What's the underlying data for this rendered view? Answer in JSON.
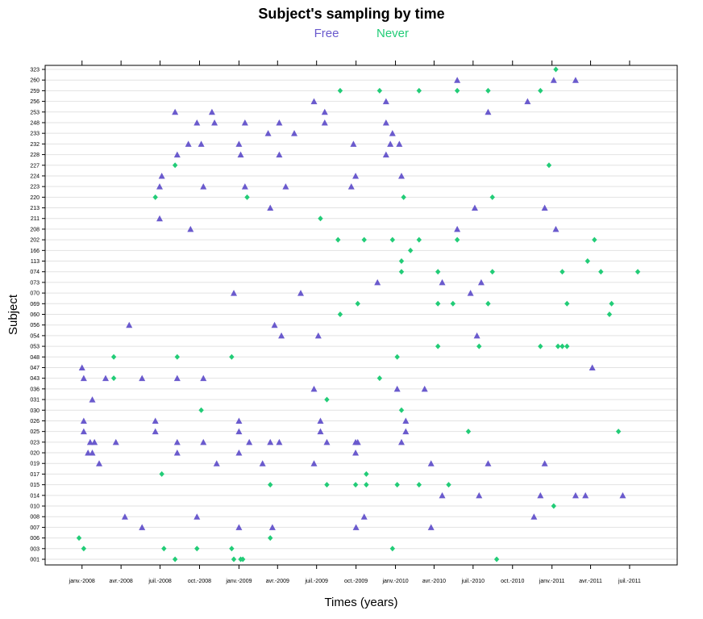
{
  "chart_data": {
    "type": "scatter",
    "title": "Subject's sampling by time",
    "xlabel": "Times (years)",
    "ylabel": "Subject",
    "xlim": [
      "2007-10-07",
      "2011-10-20"
    ],
    "x_ticks": [
      "janv.-2008",
      "avr.-2008",
      "juil.-2008",
      "oct.-2008",
      "janv.-2009",
      "avr.-2009",
      "juil.-2009",
      "oct.-2009",
      "janv.-2010",
      "avr.-2010",
      "juil.-2010",
      "oct.-2010",
      "janv.-2011",
      "avr.-2011",
      "juil.-2011"
    ],
    "x_tick_dates": [
      "2008-01-01",
      "2008-04-01",
      "2008-07-01",
      "2008-10-01",
      "2009-01-01",
      "2009-04-01",
      "2009-07-01",
      "2009-10-01",
      "2010-01-01",
      "2010-04-01",
      "2010-07-01",
      "2010-10-01",
      "2011-01-01",
      "2011-04-01",
      "2011-07-01"
    ],
    "categories": [
      "001",
      "003",
      "006",
      "007",
      "008",
      "010",
      "014",
      "015",
      "017",
      "019",
      "020",
      "023",
      "025",
      "026",
      "030",
      "031",
      "036",
      "043",
      "047",
      "048",
      "053",
      "054",
      "056",
      "060",
      "069",
      "070",
      "073",
      "074",
      "113",
      "166",
      "202",
      "208",
      "211",
      "213",
      "220",
      "223",
      "224",
      "227",
      "228",
      "232",
      "233",
      "248",
      "253",
      "256",
      "259",
      "260",
      "323"
    ],
    "grid": true,
    "legend_position": "top",
    "series": [
      {
        "name": "Free",
        "color": "#6a5acd",
        "marker": "triangle",
        "points": [
          [
            "2009-01-01",
            "007"
          ],
          [
            "2009-03-20",
            "007"
          ],
          [
            "2009-10-01",
            "007"
          ],
          [
            "2010-03-25",
            "007"
          ],
          [
            "2008-05-20",
            "007"
          ],
          [
            "2008-04-10",
            "008"
          ],
          [
            "2008-09-25",
            "008"
          ],
          [
            "2009-10-20",
            "008"
          ],
          [
            "2010-11-20",
            "008"
          ],
          [
            "2010-04-20",
            "014"
          ],
          [
            "2010-07-15",
            "014"
          ],
          [
            "2010-12-05",
            "014"
          ],
          [
            "2011-02-25",
            "014"
          ],
          [
            "2011-03-20",
            "014"
          ],
          [
            "2011-06-15",
            "014"
          ],
          [
            "2008-02-10",
            "019"
          ],
          [
            "2008-11-10",
            "019"
          ],
          [
            "2009-02-25",
            "019"
          ],
          [
            "2009-06-25",
            "019"
          ],
          [
            "2010-03-25",
            "019"
          ],
          [
            "2010-08-05",
            "019"
          ],
          [
            "2010-12-15",
            "019"
          ],
          [
            "2008-01-15",
            "020"
          ],
          [
            "2008-01-25",
            "020"
          ],
          [
            "2008-08-10",
            "020"
          ],
          [
            "2009-01-01",
            "020"
          ],
          [
            "2009-09-30",
            "020"
          ],
          [
            "2008-01-20",
            "023"
          ],
          [
            "2008-01-30",
            "023"
          ],
          [
            "2008-03-20",
            "023"
          ],
          [
            "2008-08-10",
            "023"
          ],
          [
            "2008-10-10",
            "023"
          ],
          [
            "2009-01-25",
            "023"
          ],
          [
            "2009-03-15",
            "023"
          ],
          [
            "2009-04-05",
            "023"
          ],
          [
            "2009-07-25",
            "023"
          ],
          [
            "2009-09-30",
            "023"
          ],
          [
            "2009-10-05",
            "023"
          ],
          [
            "2010-01-15",
            "023"
          ],
          [
            "2008-01-05",
            "025"
          ],
          [
            "2008-06-20",
            "025"
          ],
          [
            "2009-01-01",
            "025"
          ],
          [
            "2009-07-10",
            "025"
          ],
          [
            "2010-01-25",
            "025"
          ],
          [
            "2008-01-05",
            "026"
          ],
          [
            "2008-06-20",
            "026"
          ],
          [
            "2009-01-01",
            "026"
          ],
          [
            "2009-07-10",
            "026"
          ],
          [
            "2010-01-25",
            "026"
          ],
          [
            "2008-01-25",
            "031"
          ],
          [
            "2009-06-25",
            "036"
          ],
          [
            "2010-01-05",
            "036"
          ],
          [
            "2010-03-10",
            "036"
          ],
          [
            "2008-01-05",
            "043"
          ],
          [
            "2008-02-25",
            "043"
          ],
          [
            "2008-05-20",
            "043"
          ],
          [
            "2008-08-10",
            "043"
          ],
          [
            "2008-10-10",
            "043"
          ],
          [
            "2008-01-01",
            "047"
          ],
          [
            "2011-04-05",
            "047"
          ],
          [
            "2009-04-10",
            "054"
          ],
          [
            "2009-07-05",
            "054"
          ],
          [
            "2010-07-10",
            "054"
          ],
          [
            "2008-04-20",
            "056"
          ],
          [
            "2009-03-25",
            "056"
          ],
          [
            "2008-12-20",
            "070"
          ],
          [
            "2009-05-25",
            "070"
          ],
          [
            "2010-06-25",
            "070"
          ],
          [
            "2009-11-20",
            "073"
          ],
          [
            "2010-04-20",
            "073"
          ],
          [
            "2010-07-20",
            "073"
          ],
          [
            "2008-09-10",
            "208"
          ],
          [
            "2010-05-25",
            "208"
          ],
          [
            "2011-01-10",
            "208"
          ],
          [
            "2008-06-30",
            "211"
          ],
          [
            "2009-03-15",
            "213"
          ],
          [
            "2010-07-05",
            "213"
          ],
          [
            "2010-12-15",
            "213"
          ],
          [
            "2008-06-30",
            "223"
          ],
          [
            "2008-10-10",
            "223"
          ],
          [
            "2009-01-15",
            "223"
          ],
          [
            "2009-04-20",
            "223"
          ],
          [
            "2009-09-20",
            "223"
          ],
          [
            "2008-07-05",
            "224"
          ],
          [
            "2009-09-30",
            "224"
          ],
          [
            "2010-01-15",
            "224"
          ],
          [
            "2008-08-10",
            "228"
          ],
          [
            "2009-01-05",
            "228"
          ],
          [
            "2009-04-05",
            "228"
          ],
          [
            "2009-12-10",
            "228"
          ],
          [
            "2008-09-05",
            "232"
          ],
          [
            "2008-10-05",
            "232"
          ],
          [
            "2009-01-01",
            "232"
          ],
          [
            "2009-09-25",
            "232"
          ],
          [
            "2009-12-20",
            "232"
          ],
          [
            "2010-01-10",
            "232"
          ],
          [
            "2009-03-10",
            "233"
          ],
          [
            "2009-05-10",
            "233"
          ],
          [
            "2009-12-25",
            "233"
          ],
          [
            "2008-09-25",
            "248"
          ],
          [
            "2008-11-05",
            "248"
          ],
          [
            "2009-01-15",
            "248"
          ],
          [
            "2009-04-05",
            "248"
          ],
          [
            "2009-07-20",
            "248"
          ],
          [
            "2009-12-10",
            "248"
          ],
          [
            "2008-08-05",
            "253"
          ],
          [
            "2008-10-30",
            "253"
          ],
          [
            "2009-07-20",
            "253"
          ],
          [
            "2010-08-05",
            "253"
          ],
          [
            "2009-06-25",
            "256"
          ],
          [
            "2009-12-10",
            "256"
          ],
          [
            "2010-11-05",
            "256"
          ],
          [
            "2010-05-25",
            "260"
          ],
          [
            "2011-01-05",
            "260"
          ],
          [
            "2011-02-25",
            "260"
          ]
        ]
      },
      {
        "name": "Never",
        "color": "#22cc77",
        "marker": "diamond",
        "points": [
          [
            "2008-08-05",
            "001"
          ],
          [
            "2008-12-20",
            "001"
          ],
          [
            "2009-01-05",
            "001"
          ],
          [
            "2009-01-10",
            "001"
          ],
          [
            "2010-08-25",
            "001"
          ],
          [
            "2008-01-05",
            "003"
          ],
          [
            "2008-07-10",
            "003"
          ],
          [
            "2008-09-25",
            "003"
          ],
          [
            "2008-12-15",
            "003"
          ],
          [
            "2009-12-25",
            "003"
          ],
          [
            "2007-12-25",
            "006"
          ],
          [
            "2009-03-15",
            "006"
          ],
          [
            "2011-01-05",
            "010"
          ],
          [
            "2009-03-15",
            "015"
          ],
          [
            "2009-07-25",
            "015"
          ],
          [
            "2009-09-30",
            "015"
          ],
          [
            "2009-10-25",
            "015"
          ],
          [
            "2010-01-05",
            "015"
          ],
          [
            "2010-02-25",
            "015"
          ],
          [
            "2010-05-05",
            "015"
          ],
          [
            "2008-07-05",
            "017"
          ],
          [
            "2009-10-25",
            "017"
          ],
          [
            "2010-06-20",
            "025"
          ],
          [
            "2011-06-05",
            "025"
          ],
          [
            "2008-10-05",
            "030"
          ],
          [
            "2010-01-15",
            "030"
          ],
          [
            "2009-07-25",
            "031"
          ],
          [
            "2008-03-15",
            "043"
          ],
          [
            "2009-11-25",
            "043"
          ],
          [
            "2008-03-15",
            "048"
          ],
          [
            "2008-08-10",
            "048"
          ],
          [
            "2008-12-15",
            "048"
          ],
          [
            "2010-01-05",
            "048"
          ],
          [
            "2010-04-10",
            "053"
          ],
          [
            "2010-07-15",
            "053"
          ],
          [
            "2010-12-05",
            "053"
          ],
          [
            "2011-01-15",
            "053"
          ],
          [
            "2011-01-25",
            "053"
          ],
          [
            "2011-02-05",
            "053"
          ],
          [
            "2009-08-25",
            "060"
          ],
          [
            "2011-05-15",
            "060"
          ],
          [
            "2009-10-05",
            "069"
          ],
          [
            "2010-04-10",
            "069"
          ],
          [
            "2010-05-15",
            "069"
          ],
          [
            "2010-08-05",
            "069"
          ],
          [
            "2011-02-05",
            "069"
          ],
          [
            "2011-05-20",
            "069"
          ],
          [
            "2010-01-15",
            "074"
          ],
          [
            "2010-04-10",
            "074"
          ],
          [
            "2010-08-15",
            "074"
          ],
          [
            "2011-01-25",
            "074"
          ],
          [
            "2011-04-25",
            "074"
          ],
          [
            "2011-07-20",
            "074"
          ],
          [
            "2010-01-15",
            "113"
          ],
          [
            "2011-03-25",
            "113"
          ],
          [
            "2010-02-05",
            "166"
          ],
          [
            "2009-08-20",
            "202"
          ],
          [
            "2009-10-20",
            "202"
          ],
          [
            "2009-12-25",
            "202"
          ],
          [
            "2010-02-25",
            "202"
          ],
          [
            "2010-05-25",
            "202"
          ],
          [
            "2011-04-10",
            "202"
          ],
          [
            "2009-07-10",
            "211"
          ],
          [
            "2008-06-20",
            "220"
          ],
          [
            "2009-01-20",
            "220"
          ],
          [
            "2010-01-20",
            "220"
          ],
          [
            "2010-08-15",
            "220"
          ],
          [
            "2008-08-05",
            "227"
          ],
          [
            "2010-12-25",
            "227"
          ],
          [
            "2009-08-25",
            "259"
          ],
          [
            "2009-11-25",
            "259"
          ],
          [
            "2010-02-25",
            "259"
          ],
          [
            "2010-05-25",
            "259"
          ],
          [
            "2010-08-05",
            "259"
          ],
          [
            "2010-12-05",
            "259"
          ],
          [
            "2011-01-10",
            "323"
          ]
        ]
      }
    ]
  }
}
